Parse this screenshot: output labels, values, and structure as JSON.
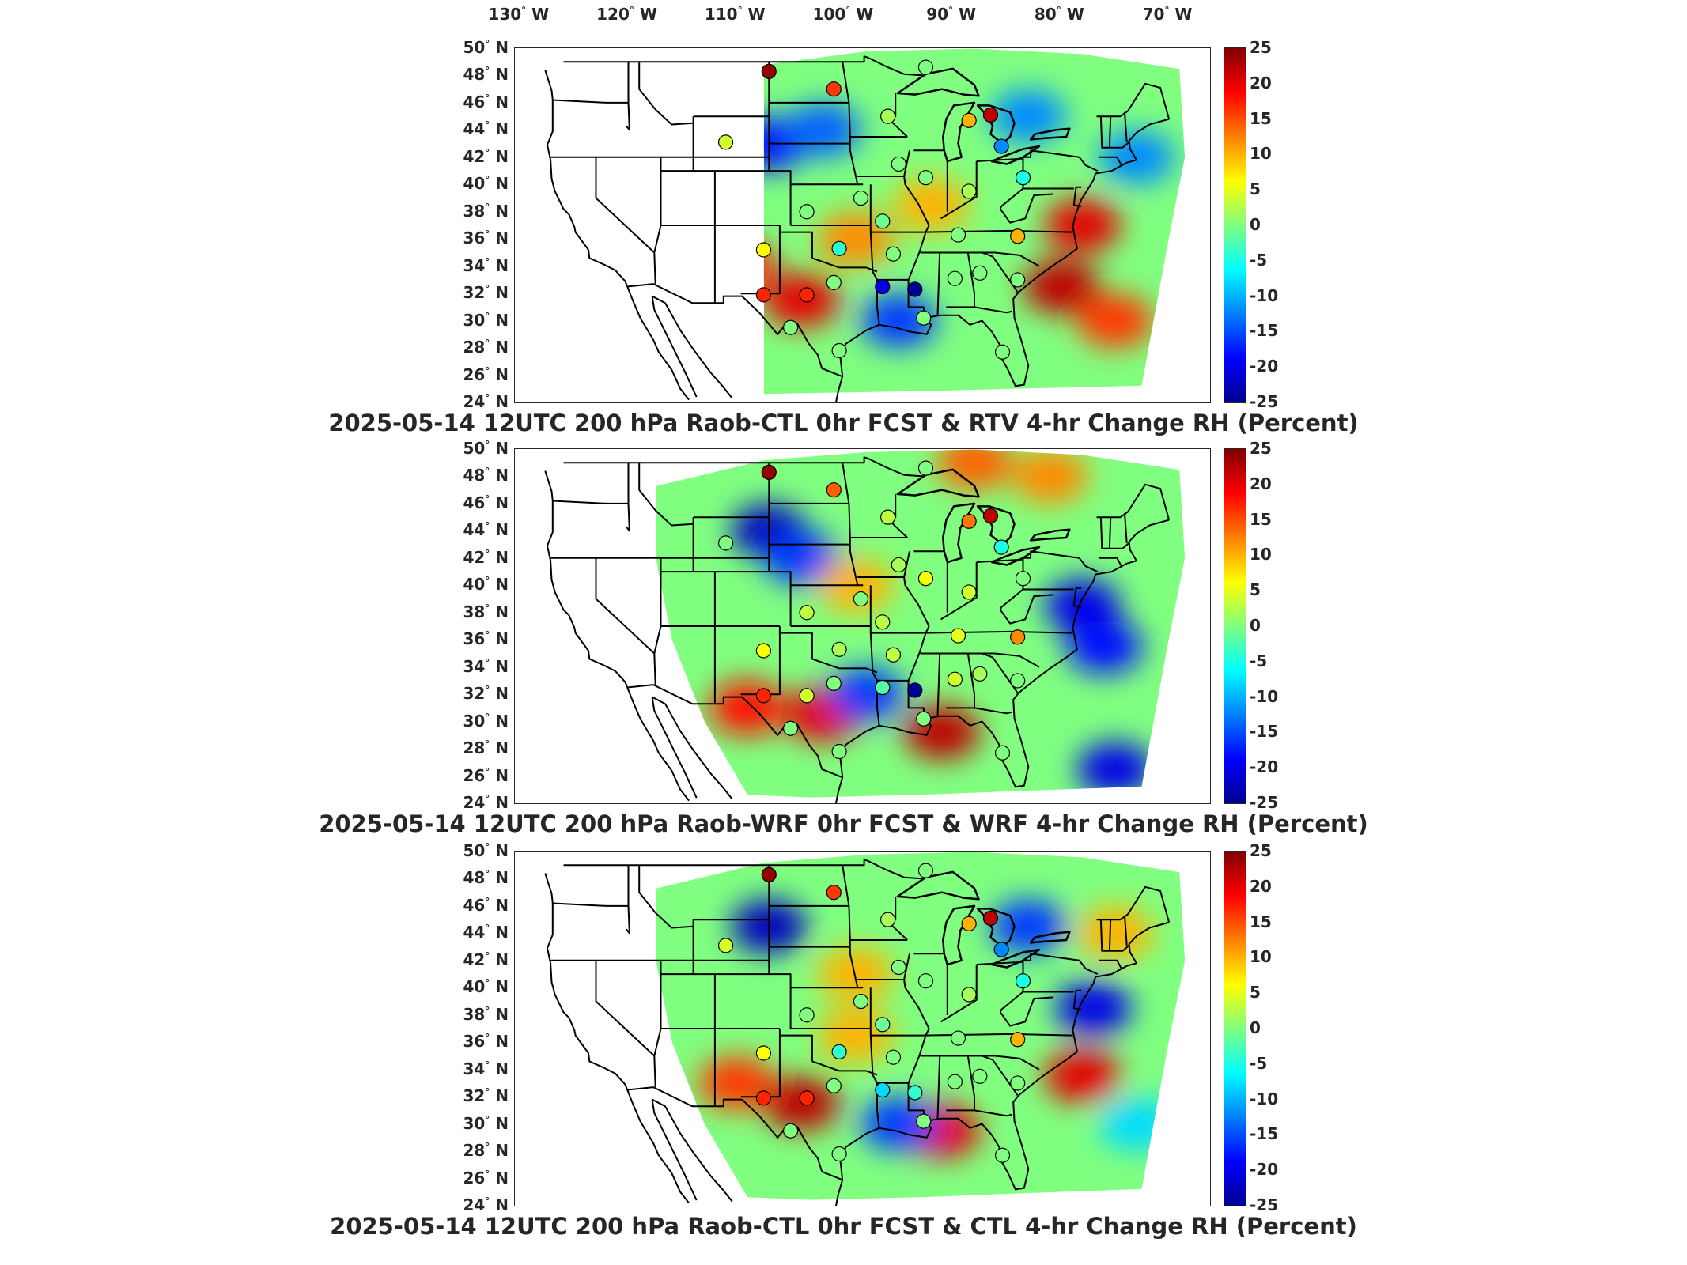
{
  "lon_labels": [
    {
      "deg": "130",
      "hemi": "W",
      "lon": -130
    },
    {
      "deg": "120",
      "hemi": "W",
      "lon": -120
    },
    {
      "deg": "110",
      "hemi": "W",
      "lon": -110
    },
    {
      "deg": "100",
      "hemi": "W",
      "lon": -100
    },
    {
      "deg": "90",
      "hemi": "W",
      "lon": -90
    },
    {
      "deg": "80",
      "hemi": "W",
      "lon": -80
    },
    {
      "deg": "70",
      "hemi": "W",
      "lon": -70
    }
  ],
  "lat_labels": [
    {
      "deg": "50",
      "hemi": "N",
      "lat": 50
    },
    {
      "deg": "48",
      "hemi": "N",
      "lat": 48
    },
    {
      "deg": "46",
      "hemi": "N",
      "lat": 46
    },
    {
      "deg": "44",
      "hemi": "N",
      "lat": 44
    },
    {
      "deg": "42",
      "hemi": "N",
      "lat": 42
    },
    {
      "deg": "40",
      "hemi": "N",
      "lat": 40
    },
    {
      "deg": "38",
      "hemi": "N",
      "lat": 38
    },
    {
      "deg": "36",
      "hemi": "N",
      "lat": 36
    },
    {
      "deg": "34",
      "hemi": "N",
      "lat": 34
    },
    {
      "deg": "32",
      "hemi": "N",
      "lat": 32
    },
    {
      "deg": "30",
      "hemi": "N",
      "lat": 30
    },
    {
      "deg": "28",
      "hemi": "N",
      "lat": 28
    },
    {
      "deg": "26",
      "hemi": "N",
      "lat": 26
    },
    {
      "deg": "24",
      "hemi": "N",
      "lat": 24
    }
  ],
  "colorbar": {
    "ticks": [
      "25",
      "20",
      "15",
      "10",
      "5",
      "0",
      "-5",
      "-10",
      "-15",
      "-20",
      "-25"
    ],
    "range": [
      -25,
      25
    ],
    "colormap": "jet",
    "colors": [
      "#00008f",
      "#0000ff",
      "#0080ff",
      "#00ffff",
      "#80ff80",
      "#ffff00",
      "#ff8000",
      "#ff0000",
      "#800000"
    ]
  },
  "panels": [
    {
      "title": "2025-05-14 12UTC 200 hPa Raob-CTL 0hr FCST & RTV 4-hr Change RH (Percent)",
      "raob_differences": [
        {
          "lon": -104,
          "lat": 48.3,
          "value": 24
        },
        {
          "lon": -98,
          "lat": 47.0,
          "value": 16
        },
        {
          "lon": -89.5,
          "lat": 48.6,
          "value": 0
        },
        {
          "lon": -93,
          "lat": 45,
          "value": 2
        },
        {
          "lon": -85.5,
          "lat": 44.7,
          "value": 10
        },
        {
          "lon": -83.5,
          "lat": 45.1,
          "value": 22
        },
        {
          "lon": -82.5,
          "lat": 42.8,
          "value": -12
        },
        {
          "lon": -108,
          "lat": 43.1,
          "value": 4
        },
        {
          "lon": -92,
          "lat": 41.5,
          "value": 0
        },
        {
          "lon": -89.5,
          "lat": 40.5,
          "value": 0
        },
        {
          "lon": -85.5,
          "lat": 39.5,
          "value": 2
        },
        {
          "lon": -80.5,
          "lat": 40.5,
          "value": -5
        },
        {
          "lon": -95.5,
          "lat": 39.0,
          "value": 0
        },
        {
          "lon": -100.5,
          "lat": 38.0,
          "value": 0
        },
        {
          "lon": -93.5,
          "lat": 37.3,
          "value": -1
        },
        {
          "lon": -86.5,
          "lat": 36.3,
          "value": 0
        },
        {
          "lon": -81,
          "lat": 36.2,
          "value": 10
        },
        {
          "lon": -104.5,
          "lat": 35.2,
          "value": 6
        },
        {
          "lon": -97.5,
          "lat": 35.3,
          "value": -4
        },
        {
          "lon": -92.5,
          "lat": 34.9,
          "value": 0
        },
        {
          "lon": -98,
          "lat": 32.8,
          "value": 0
        },
        {
          "lon": -93.5,
          "lat": 32.5,
          "value": -20
        },
        {
          "lon": -90.5,
          "lat": 32.3,
          "value": -24
        },
        {
          "lon": -86.8,
          "lat": 33.1,
          "value": 0
        },
        {
          "lon": -84.5,
          "lat": 33.5,
          "value": 0
        },
        {
          "lon": -81,
          "lat": 33.0,
          "value": 0
        },
        {
          "lon": -104.5,
          "lat": 31.9,
          "value": 17
        },
        {
          "lon": -100.5,
          "lat": 31.9,
          "value": 17
        },
        {
          "lon": -102,
          "lat": 29.5,
          "value": 0
        },
        {
          "lon": -97.5,
          "lat": 27.8,
          "value": 0
        },
        {
          "lon": -82.4,
          "lat": 27.7,
          "value": 0
        },
        {
          "lon": -89.7,
          "lat": 30.2,
          "value": 0
        }
      ],
      "field_hotspots": [
        {
          "lon": -107,
          "lat": 34,
          "value": 18
        },
        {
          "lon": -101,
          "lat": 31.5,
          "value": 20
        },
        {
          "lon": -77,
          "lat": 32.5,
          "value": 22
        },
        {
          "lon": -75,
          "lat": 37,
          "value": 20
        },
        {
          "lon": -104,
          "lat": 43,
          "value": -18
        },
        {
          "lon": -99,
          "lat": 44,
          "value": -14
        },
        {
          "lon": -96,
          "lat": 36,
          "value": 12
        },
        {
          "lon": -89,
          "lat": 38.5,
          "value": 10
        },
        {
          "lon": -92,
          "lat": 30,
          "value": -16
        },
        {
          "lon": -80,
          "lat": 45,
          "value": -12
        },
        {
          "lon": -70,
          "lat": 42,
          "value": -12
        },
        {
          "lon": -72,
          "lat": 30,
          "value": 16
        }
      ]
    },
    {
      "title": "2025-05-14 12UTC 200 hPa Raob-WRF 0hr FCST & WRF 4-hr Change RH (Percent)",
      "raob_differences": [
        {
          "lon": -104,
          "lat": 48.3,
          "value": 24
        },
        {
          "lon": -98,
          "lat": 47.0,
          "value": 14
        },
        {
          "lon": -89.5,
          "lat": 48.6,
          "value": 0
        },
        {
          "lon": -93,
          "lat": 45,
          "value": 3
        },
        {
          "lon": -85.5,
          "lat": 44.7,
          "value": 13
        },
        {
          "lon": -83.5,
          "lat": 45.1,
          "value": 22
        },
        {
          "lon": -82.5,
          "lat": 42.8,
          "value": -5
        },
        {
          "lon": -108,
          "lat": 43.1,
          "value": 0
        },
        {
          "lon": -92,
          "lat": 41.5,
          "value": 2
        },
        {
          "lon": -89.5,
          "lat": 40.5,
          "value": 6
        },
        {
          "lon": -85.5,
          "lat": 39.5,
          "value": 4
        },
        {
          "lon": -80.5,
          "lat": 40.5,
          "value": 0
        },
        {
          "lon": -95.5,
          "lat": 39.0,
          "value": 0
        },
        {
          "lon": -100.5,
          "lat": 38.0,
          "value": 3
        },
        {
          "lon": -93.5,
          "lat": 37.3,
          "value": 3
        },
        {
          "lon": -86.5,
          "lat": 36.3,
          "value": 5
        },
        {
          "lon": -81,
          "lat": 36.2,
          "value": 12
        },
        {
          "lon": -104.5,
          "lat": 35.2,
          "value": 6
        },
        {
          "lon": -97.5,
          "lat": 35.3,
          "value": 2
        },
        {
          "lon": -92.5,
          "lat": 34.9,
          "value": 3
        },
        {
          "lon": -98,
          "lat": 32.8,
          "value": 0
        },
        {
          "lon": -93.5,
          "lat": 32.5,
          "value": -2
        },
        {
          "lon": -90.5,
          "lat": 32.3,
          "value": -24
        },
        {
          "lon": -86.8,
          "lat": 33.1,
          "value": 4
        },
        {
          "lon": -84.5,
          "lat": 33.5,
          "value": 2
        },
        {
          "lon": -81,
          "lat": 33.0,
          "value": 0
        },
        {
          "lon": -104.5,
          "lat": 31.9,
          "value": 17
        },
        {
          "lon": -100.5,
          "lat": 31.9,
          "value": 4
        },
        {
          "lon": -102,
          "lat": 29.5,
          "value": 0
        },
        {
          "lon": -97.5,
          "lat": 27.8,
          "value": 0
        },
        {
          "lon": -82.4,
          "lat": 27.7,
          "value": 0
        },
        {
          "lon": -89.7,
          "lat": 30.2,
          "value": 0
        }
      ],
      "field_hotspots": [
        {
          "lon": -104,
          "lat": 44,
          "value": -22
        },
        {
          "lon": -101,
          "lat": 42,
          "value": -16
        },
        {
          "lon": -106,
          "lat": 31,
          "value": 18
        },
        {
          "lon": -99,
          "lat": 30.5,
          "value": 20
        },
        {
          "lon": -88,
          "lat": 29.2,
          "value": 22
        },
        {
          "lon": -95,
          "lat": 32,
          "value": -16
        },
        {
          "lon": -75,
          "lat": 38.5,
          "value": -20
        },
        {
          "lon": -73,
          "lat": 35.5,
          "value": -18
        },
        {
          "lon": -72,
          "lat": 26.5,
          "value": -20
        },
        {
          "lon": -78,
          "lat": 48,
          "value": 12
        },
        {
          "lon": -85,
          "lat": 49,
          "value": 14
        },
        {
          "lon": -96,
          "lat": 40,
          "value": 10
        }
      ]
    },
    {
      "title": "2025-05-14 12UTC 200 hPa Raob-CTL 0hr FCST & CTL 4-hr Change RH (Percent)",
      "raob_differences": [
        {
          "lon": -104,
          "lat": 48.3,
          "value": 24
        },
        {
          "lon": -98,
          "lat": 47.0,
          "value": 16
        },
        {
          "lon": -89.5,
          "lat": 48.6,
          "value": 0
        },
        {
          "lon": -93,
          "lat": 45,
          "value": 2
        },
        {
          "lon": -85.5,
          "lat": 44.7,
          "value": 10
        },
        {
          "lon": -83.5,
          "lat": 45.1,
          "value": 22
        },
        {
          "lon": -82.5,
          "lat": 42.8,
          "value": -12
        },
        {
          "lon": -108,
          "lat": 43.1,
          "value": 4
        },
        {
          "lon": -92,
          "lat": 41.5,
          "value": 0
        },
        {
          "lon": -89.5,
          "lat": 40.5,
          "value": 0
        },
        {
          "lon": -85.5,
          "lat": 39.5,
          "value": 2
        },
        {
          "lon": -80.5,
          "lat": 40.5,
          "value": -5
        },
        {
          "lon": -95.5,
          "lat": 39.0,
          "value": 0
        },
        {
          "lon": -100.5,
          "lat": 38.0,
          "value": 0
        },
        {
          "lon": -93.5,
          "lat": 37.3,
          "value": -1
        },
        {
          "lon": -86.5,
          "lat": 36.3,
          "value": 0
        },
        {
          "lon": -81,
          "lat": 36.2,
          "value": 10
        },
        {
          "lon": -104.5,
          "lat": 35.2,
          "value": 6
        },
        {
          "lon": -97.5,
          "lat": 35.3,
          "value": -4
        },
        {
          "lon": -92.5,
          "lat": 34.9,
          "value": 0
        },
        {
          "lon": -98,
          "lat": 32.8,
          "value": 0
        },
        {
          "lon": -93.5,
          "lat": 32.5,
          "value": -8
        },
        {
          "lon": -90.5,
          "lat": 32.3,
          "value": -4
        },
        {
          "lon": -86.8,
          "lat": 33.1,
          "value": 0
        },
        {
          "lon": -84.5,
          "lat": 33.5,
          "value": 0
        },
        {
          "lon": -81,
          "lat": 33.0,
          "value": 0
        },
        {
          "lon": -104.5,
          "lat": 31.9,
          "value": 17
        },
        {
          "lon": -100.5,
          "lat": 31.9,
          "value": 17
        },
        {
          "lon": -102,
          "lat": 29.5,
          "value": 0
        },
        {
          "lon": -97.5,
          "lat": 27.8,
          "value": 0
        },
        {
          "lon": -82.4,
          "lat": 27.7,
          "value": 0
        },
        {
          "lon": -89.7,
          "lat": 30.2,
          "value": 0
        }
      ],
      "field_hotspots": [
        {
          "lon": -104,
          "lat": 44.5,
          "value": -22
        },
        {
          "lon": -101,
          "lat": 31.5,
          "value": 22
        },
        {
          "lon": -107,
          "lat": 33,
          "value": 16
        },
        {
          "lon": -96,
          "lat": 36.5,
          "value": 10
        },
        {
          "lon": -88,
          "lat": 29.5,
          "value": 20
        },
        {
          "lon": -92,
          "lat": 30,
          "value": -16
        },
        {
          "lon": -74,
          "lat": 38.5,
          "value": -20
        },
        {
          "lon": -75,
          "lat": 33.5,
          "value": 20
        },
        {
          "lon": -80,
          "lat": 44.5,
          "value": -16
        },
        {
          "lon": -72,
          "lat": 44,
          "value": 10
        },
        {
          "lon": -96,
          "lat": 41,
          "value": 10
        },
        {
          "lon": -70,
          "lat": 30,
          "value": -8
        }
      ]
    }
  ]
}
